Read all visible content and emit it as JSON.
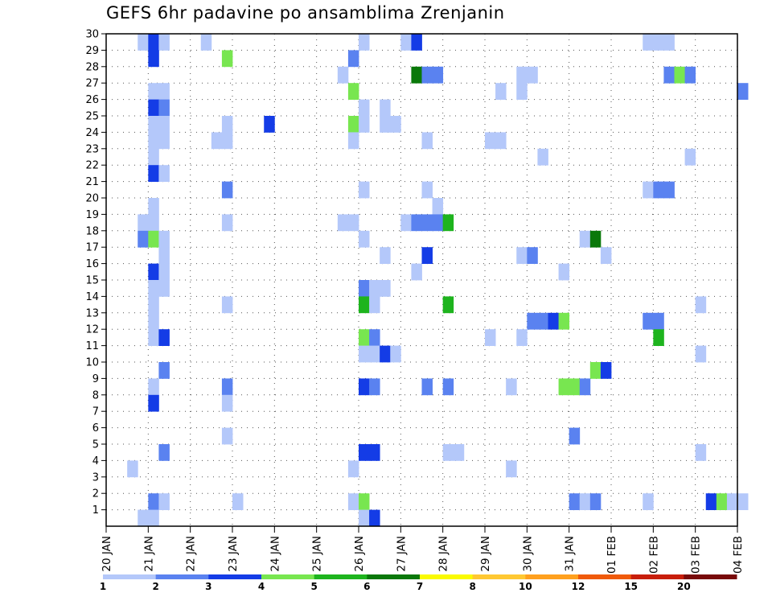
{
  "title": "GEFS 6hr padavine po ansamblima Zrenjanin",
  "chart_data": {
    "type": "heatmap",
    "title": "GEFS 6hr padavine po ansamblima Zrenjanin",
    "xlabel": "",
    "ylabel": "",
    "x_tick_labels": [
      "20 JAN",
      "21 JAN",
      "22 JAN",
      "23 JAN",
      "24 JAN",
      "25 JAN",
      "26 JAN",
      "27 JAN",
      "28 JAN",
      "29 JAN",
      "30 JAN",
      "31 JAN",
      "01 FEB",
      "02 FEB",
      "03 FEB",
      "04 FEB"
    ],
    "y_tick_labels": [
      "1",
      "2",
      "3",
      "4",
      "5",
      "6",
      "7",
      "8",
      "9",
      "10",
      "11",
      "12",
      "13",
      "14",
      "15",
      "16",
      "17",
      "18",
      "19",
      "20",
      "21",
      "22",
      "23",
      "24",
      "25",
      "26",
      "27",
      "28",
      "29",
      "30"
    ],
    "x_range_days": [
      0,
      15
    ],
    "y_range": [
      0,
      30
    ],
    "grid": true,
    "colorbar": {
      "bounds": [
        "1",
        "2",
        "3",
        "4",
        "5",
        "6",
        "7",
        "8",
        "10",
        "12",
        "15",
        "20"
      ],
      "colors": [
        "#b4c8fa",
        "#5a82f0",
        "#143ce6",
        "#78e650",
        "#1eb41e",
        "#0a780a",
        "#fafa00",
        "#ffc832",
        "#ffa01e",
        "#f05a0a",
        "#c81e0a",
        "#780a0a"
      ]
    },
    "cells": [
      [
        0.75,
        30,
        1
      ],
      [
        1.0,
        30,
        3
      ],
      [
        1.25,
        30,
        1
      ],
      [
        2.25,
        30,
        1
      ],
      [
        6.0,
        30,
        1
      ],
      [
        7.0,
        30,
        1
      ],
      [
        7.25,
        30,
        3
      ],
      [
        12.75,
        30,
        1
      ],
      [
        13.0,
        30,
        1
      ],
      [
        13.25,
        30,
        1
      ],
      [
        1.0,
        29,
        3
      ],
      [
        2.75,
        29,
        4
      ],
      [
        5.75,
        29,
        2
      ],
      [
        5.5,
        28,
        1
      ],
      [
        7.25,
        28,
        6
      ],
      [
        7.5,
        28,
        2
      ],
      [
        7.75,
        28,
        2
      ],
      [
        9.75,
        28,
        1
      ],
      [
        10.0,
        28,
        1
      ],
      [
        13.25,
        28,
        2
      ],
      [
        13.5,
        28,
        4
      ],
      [
        13.75,
        28,
        2
      ],
      [
        1.0,
        27,
        1
      ],
      [
        1.25,
        27,
        1
      ],
      [
        5.75,
        27,
        4
      ],
      [
        9.25,
        27,
        1
      ],
      [
        9.75,
        27,
        1
      ],
      [
        15.0,
        27,
        2
      ],
      [
        1.0,
        26,
        3
      ],
      [
        1.25,
        26,
        2
      ],
      [
        6.0,
        26,
        1
      ],
      [
        6.5,
        26,
        1
      ],
      [
        1.0,
        25,
        1
      ],
      [
        1.25,
        25,
        1
      ],
      [
        2.75,
        25,
        1
      ],
      [
        3.75,
        25,
        3
      ],
      [
        5.75,
        25,
        4
      ],
      [
        6.0,
        25,
        1
      ],
      [
        6.5,
        25,
        1
      ],
      [
        6.75,
        25,
        1
      ],
      [
        1.0,
        24,
        1
      ],
      [
        1.25,
        24,
        1
      ],
      [
        2.5,
        24,
        1
      ],
      [
        2.75,
        24,
        1
      ],
      [
        5.75,
        24,
        1
      ],
      [
        7.5,
        24,
        1
      ],
      [
        9.0,
        24,
        1
      ],
      [
        9.25,
        24,
        1
      ],
      [
        1.0,
        23,
        1
      ],
      [
        10.25,
        23,
        1
      ],
      [
        13.75,
        23,
        1
      ],
      [
        1.0,
        22,
        3
      ],
      [
        1.25,
        22,
        1
      ],
      [
        2.75,
        21,
        2
      ],
      [
        6.0,
        21,
        1
      ],
      [
        7.5,
        21,
        1
      ],
      [
        12.75,
        21,
        1
      ],
      [
        13.0,
        21,
        2
      ],
      [
        13.25,
        21,
        2
      ],
      [
        1.0,
        20,
        1
      ],
      [
        7.75,
        20,
        1
      ],
      [
        0.75,
        19,
        1
      ],
      [
        1.0,
        19,
        1
      ],
      [
        2.75,
        19,
        1
      ],
      [
        5.5,
        19,
        1
      ],
      [
        5.75,
        19,
        1
      ],
      [
        7.0,
        19,
        1
      ],
      [
        7.25,
        19,
        2
      ],
      [
        7.5,
        19,
        2
      ],
      [
        7.75,
        19,
        2
      ],
      [
        8.0,
        19,
        5
      ],
      [
        0.75,
        18,
        2
      ],
      [
        1.0,
        18,
        4
      ],
      [
        1.25,
        18,
        1
      ],
      [
        6.0,
        18,
        1
      ],
      [
        11.25,
        18,
        1
      ],
      [
        11.5,
        18,
        6
      ],
      [
        1.25,
        17,
        1
      ],
      [
        6.5,
        17,
        1
      ],
      [
        7.5,
        17,
        3
      ],
      [
        9.75,
        17,
        1
      ],
      [
        10.0,
        17,
        2
      ],
      [
        11.75,
        17,
        1
      ],
      [
        1.0,
        16,
        3
      ],
      [
        1.25,
        16,
        1
      ],
      [
        7.25,
        16,
        1
      ],
      [
        10.75,
        16,
        1
      ],
      [
        1.0,
        15,
        1
      ],
      [
        1.25,
        15,
        1
      ],
      [
        6.0,
        15,
        2
      ],
      [
        6.25,
        15,
        1
      ],
      [
        6.5,
        15,
        1
      ],
      [
        1.0,
        14,
        1
      ],
      [
        2.75,
        14,
        1
      ],
      [
        6.0,
        14,
        5
      ],
      [
        6.25,
        14,
        1
      ],
      [
        8.0,
        14,
        5
      ],
      [
        14.0,
        14,
        1
      ],
      [
        1.0,
        13,
        1
      ],
      [
        10.0,
        13,
        2
      ],
      [
        10.25,
        13,
        2
      ],
      [
        10.5,
        13,
        3
      ],
      [
        10.75,
        13,
        4
      ],
      [
        12.75,
        13,
        2
      ],
      [
        13.0,
        13,
        2
      ],
      [
        1.0,
        12,
        1
      ],
      [
        1.25,
        12,
        3
      ],
      [
        6.0,
        12,
        4
      ],
      [
        6.25,
        12,
        2
      ],
      [
        9.0,
        12,
        1
      ],
      [
        9.75,
        12,
        1
      ],
      [
        13.0,
        12,
        5
      ],
      [
        6.0,
        11,
        1
      ],
      [
        6.25,
        11,
        1
      ],
      [
        6.5,
        11,
        3
      ],
      [
        6.75,
        11,
        1
      ],
      [
        14.0,
        11,
        1
      ],
      [
        1.25,
        10,
        2
      ],
      [
        11.5,
        10,
        4
      ],
      [
        11.75,
        10,
        3
      ],
      [
        1.0,
        9,
        1
      ],
      [
        2.75,
        9,
        2
      ],
      [
        6.0,
        9,
        3
      ],
      [
        6.25,
        9,
        2
      ],
      [
        7.5,
        9,
        2
      ],
      [
        8.0,
        9,
        2
      ],
      [
        9.5,
        9,
        1
      ],
      [
        10.75,
        9,
        4
      ],
      [
        11.0,
        9,
        4
      ],
      [
        11.25,
        9,
        2
      ],
      [
        1.0,
        8,
        3
      ],
      [
        2.75,
        8,
        1
      ],
      [
        2.75,
        6,
        1
      ],
      [
        11.0,
        6,
        2
      ],
      [
        1.25,
        5,
        2
      ],
      [
        6.0,
        5,
        3
      ],
      [
        6.25,
        5,
        3
      ],
      [
        8.0,
        5,
        1
      ],
      [
        8.25,
        5,
        1
      ],
      [
        14.0,
        5,
        1
      ],
      [
        0.5,
        4,
        1
      ],
      [
        5.75,
        4,
        1
      ],
      [
        9.5,
        4,
        1
      ],
      [
        1.0,
        2,
        2
      ],
      [
        1.25,
        2,
        1
      ],
      [
        3.0,
        2,
        1
      ],
      [
        5.75,
        2,
        1
      ],
      [
        6.0,
        2,
        4
      ],
      [
        11.0,
        2,
        2
      ],
      [
        11.25,
        2,
        1
      ],
      [
        11.5,
        2,
        2
      ],
      [
        12.75,
        2,
        1
      ],
      [
        14.25,
        2,
        3
      ],
      [
        14.5,
        2,
        4
      ],
      [
        14.75,
        2,
        1
      ],
      [
        15.0,
        2,
        1
      ],
      [
        0.75,
        1,
        1
      ],
      [
        1.0,
        1,
        1
      ],
      [
        6.0,
        1,
        1
      ],
      [
        6.25,
        1,
        3
      ]
    ]
  }
}
